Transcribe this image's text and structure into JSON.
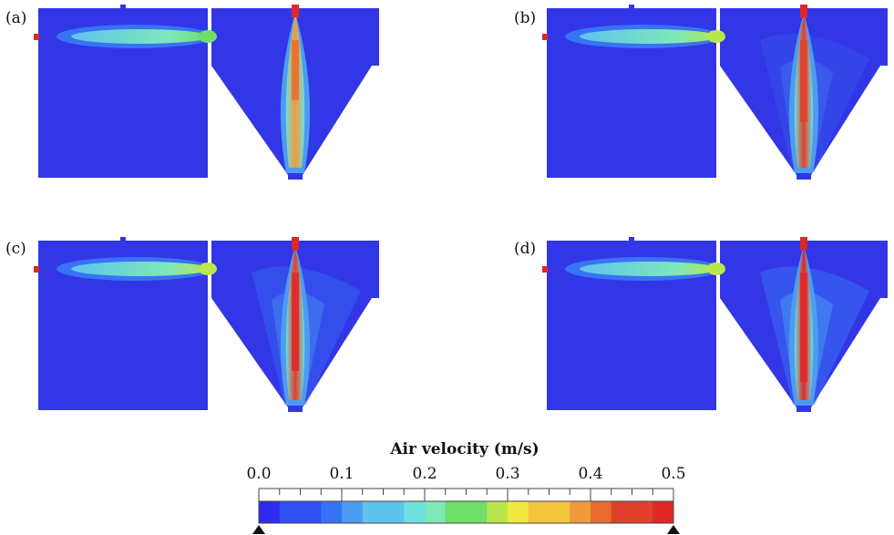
{
  "panels": [
    {
      "label": "(a)",
      "intensity": 0.55
    },
    {
      "label": "(b)",
      "intensity": 0.75
    },
    {
      "label": "(c)",
      "intensity": 0.9
    },
    {
      "label": "(d)",
      "intensity": 1.0
    }
  ],
  "legend": {
    "title": "Air velocity (m/s)",
    "ticks": [
      "0.0",
      "0.1",
      "0.2",
      "0.3",
      "0.4",
      "0.5"
    ],
    "range": [
      0.0,
      0.5
    ],
    "levels": 20,
    "colormap": [
      "#2c2cf0",
      "#2f4ff5",
      "#3873f5",
      "#4b9cf2",
      "#5fc3ee",
      "#6fe0e0",
      "#7ee8b8",
      "#6fde6a",
      "#b9e74c",
      "#f0ea40",
      "#f4c43d",
      "#ef9b39",
      "#e96c30",
      "#e0402a",
      "#e02626"
    ]
  },
  "colors": {
    "background_flow": "#3236e6",
    "inlet_marker": "#e02626"
  }
}
